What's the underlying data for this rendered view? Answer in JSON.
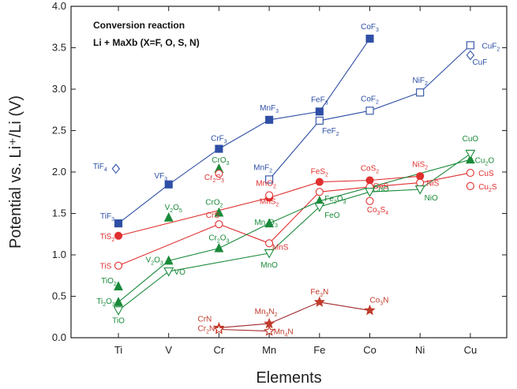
{
  "chart_data": {
    "type": "scatter",
    "title": "",
    "xlabel": "Elements",
    "ylabel": "Potential vs. Li⁺/Li (V)",
    "categories": [
      "Ti",
      "V",
      "Cr",
      "Mn",
      "Fe",
      "Co",
      "Ni",
      "Cu"
    ],
    "ylim": [
      0.0,
      4.0
    ],
    "yticks": [
      "0.0",
      "0.5",
      "1.0",
      "1.5",
      "2.0",
      "2.5",
      "3.0",
      "3.5",
      "4.0"
    ],
    "annotation_line1": "Conversion reaction",
    "annotation_line2": "Li + MaXb  (X=F, O, S, N)",
    "series": [
      {
        "color": "#2e4fa5",
        "marker": "square-filled",
        "points": [
          [
            0,
            1.38,
            "TiF3"
          ],
          [
            1,
            1.85,
            "VF3"
          ],
          [
            2,
            2.28,
            "CrF3"
          ],
          [
            3,
            2.63,
            "MnF3"
          ],
          [
            4,
            2.73,
            "FeF3"
          ],
          [
            5,
            3.61,
            "CoF3"
          ]
        ]
      },
      {
        "color": "#2e4fa5",
        "marker": "square-open",
        "points": [
          [
            3,
            1.91,
            "MnF2"
          ],
          [
            4,
            2.62,
            "FeF2"
          ],
          [
            5,
            2.74,
            "CoF2"
          ],
          [
            6,
            2.96,
            "NiF2"
          ],
          [
            7,
            3.53,
            "CuF2"
          ]
        ]
      },
      {
        "color": "#e03030",
        "marker": "circle-filled",
        "points": [
          [
            0,
            1.23,
            "TiS2"
          ],
          [
            3,
            1.69,
            "MnS2"
          ],
          [
            4,
            1.88,
            "FeS2"
          ],
          [
            5,
            1.9,
            "CoS2"
          ],
          [
            6,
            1.95,
            "NiS2"
          ]
        ]
      },
      {
        "color": "#e03030",
        "marker": "circle-open",
        "points": [
          [
            0,
            0.87,
            "TiS"
          ],
          [
            2,
            1.37,
            "CrS"
          ],
          [
            3,
            1.14,
            "MnS"
          ],
          [
            4,
            1.76,
            "FeS"
          ],
          [
            5,
            1.82,
            "CoS"
          ],
          [
            6,
            1.87,
            "NiS"
          ],
          [
            7,
            1.99,
            "CuS"
          ]
        ]
      },
      {
        "color": "#1a8a3a",
        "marker": "triangle-filled",
        "points": [
          [
            0,
            0.43,
            "Ti2O3"
          ],
          [
            1,
            0.93,
            "V2O3"
          ],
          [
            2,
            1.08,
            "Cr2O3"
          ],
          [
            3,
            1.38,
            "Mn2O3"
          ],
          [
            4,
            1.65,
            "Fe2O3"
          ],
          [
            7,
            2.15,
            "Cu2O"
          ]
        ]
      },
      {
        "color": "#1a8a3a",
        "marker": "triangle-open",
        "points": [
          [
            0,
            0.33,
            "TiO"
          ],
          [
            1,
            0.8,
            "VO"
          ],
          [
            3,
            1.02,
            "MnO"
          ],
          [
            4,
            1.58,
            "FeO"
          ],
          [
            5,
            1.76,
            "CoO"
          ],
          [
            6,
            1.79,
            "NiO"
          ],
          [
            7,
            2.22,
            "CuO"
          ]
        ]
      },
      {
        "color": "#c03a2a",
        "marker": "star-filled",
        "line_color": "#a0282a",
        "points": [
          [
            2,
            0.12,
            "Cr2N"
          ],
          [
            3,
            0.17,
            "Mn3N2"
          ],
          [
            4,
            0.43,
            "Fe3N"
          ],
          [
            5,
            0.33,
            "Co3N"
          ]
        ]
      },
      {
        "color": "#c03a2a",
        "marker": "star-open",
        "line_color": "#a0282a",
        "points": [
          [
            2,
            0.1,
            "CrN"
          ],
          [
            3,
            0.08,
            "Mn4N"
          ]
        ]
      }
    ],
    "extra_points": [
      {
        "x": -0.05,
        "y": 2.04,
        "marker": "diamond-open",
        "color": "#2e4fa5",
        "label": "TiF4"
      },
      {
        "x": 2.0,
        "y": 2.04,
        "marker": "triangle-filled",
        "color": "#1a8a3a",
        "label": "CrO3"
      },
      {
        "x": 2.0,
        "y": 1.98,
        "marker": "circle-open",
        "color": "#e03030",
        "label": "Cr2S3"
      },
      {
        "x": 2.0,
        "y": 1.51,
        "marker": "triangle-filled",
        "color": "#1a8a3a",
        "label": "CrO2"
      },
      {
        "x": 1.0,
        "y": 1.45,
        "marker": "triangle-filled",
        "color": "#1a8a3a",
        "label": "V2O5"
      },
      {
        "x": 0.0,
        "y": 0.62,
        "marker": "triangle-filled",
        "color": "#1a8a3a",
        "label": "TiO2"
      },
      {
        "x": 3.0,
        "y": 1.72,
        "marker": "circle-open",
        "color": "#e03030",
        "label": "MnO2"
      },
      {
        "x": 5.0,
        "y": 1.65,
        "marker": "circle-open",
        "color": "#e03030",
        "label": "Co3S4"
      },
      {
        "x": 7.0,
        "y": 1.83,
        "marker": "circle-open",
        "color": "#e03030",
        "label": "Cu2S"
      },
      {
        "x": 7.0,
        "y": 3.41,
        "marker": "diamond-open",
        "color": "#2e4fa5",
        "label": "CuF"
      }
    ]
  }
}
